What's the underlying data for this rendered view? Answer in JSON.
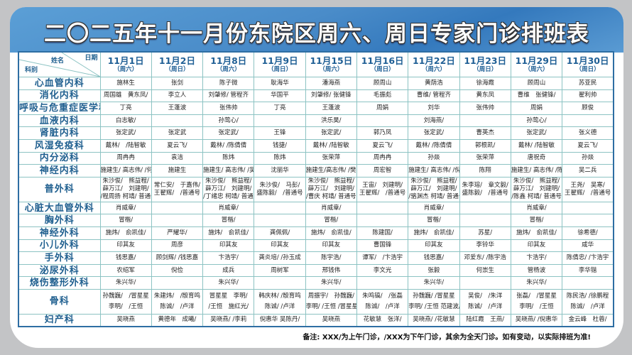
{
  "title": "二〇二五年十一月份东院区周六、周日专家门诊排班表",
  "corner": {
    "date": "日期",
    "name": "姓名",
    "dept": "科别"
  },
  "dates": [
    {
      "date": "11月1日",
      "weekday": "（周六）"
    },
    {
      "date": "11月2日",
      "weekday": "（周日）"
    },
    {
      "date": "11月8日",
      "weekday": "（周六）"
    },
    {
      "date": "11月9日",
      "weekday": "（周日）"
    },
    {
      "date": "11月15日",
      "weekday": "（周六）"
    },
    {
      "date": "11月16日",
      "weekday": "（周日）"
    },
    {
      "date": "11月22日",
      "weekday": "（周六）"
    },
    {
      "date": "11月23日",
      "weekday": "（周日）"
    },
    {
      "date": "11月29日",
      "weekday": "（周六）"
    },
    {
      "date": "11月30日",
      "weekday": "（周日）"
    }
  ],
  "rows": [
    {
      "dept": "心血管内科",
      "cells": [
        [
          "施林生"
        ],
        [
          "张剑"
        ],
        [
          "陈子微"
        ],
        [
          "耿海华"
        ],
        [
          "潘海燕"
        ],
        [
          "顾周山"
        ],
        [
          "黄荫浩"
        ],
        [
          "徐海霞"
        ],
        [
          "顾周山"
        ],
        [
          "苏亚民"
        ]
      ]
    },
    {
      "dept": "消化内科",
      "cells": [
        [
          "周国雄　黄东凤/"
        ],
        [
          "李立人"
        ],
        [
          "刘肇修/ 管程齐"
        ],
        [
          "华国平"
        ],
        [
          "刘肇修/ 张健锋"
        ],
        [
          "毛振彪"
        ],
        [
          "曹维/ 管程齐"
        ],
        [
          "黄东凤"
        ],
        [
          "曹维　张健锋/"
        ],
        [
          "翟利帅"
        ]
      ]
    },
    {
      "dept": "呼吸与危重症医学科",
      "cells": [
        [
          "丁亮"
        ],
        [
          "王蓬波"
        ],
        [
          "张伟帅"
        ],
        [
          "丁亮"
        ],
        [
          "王蓬波"
        ],
        [
          "周娟"
        ],
        [
          "刘华"
        ],
        [
          "张伟帅"
        ],
        [
          "周娟"
        ],
        [
          "顾俊"
        ]
      ]
    },
    {
      "dept": "血液内科",
      "cells": [
        [
          "白志敏/"
        ],
        [],
        [
          "孙莺心/"
        ],
        [],
        [
          "洪乐昊/"
        ],
        [],
        [
          "刘海燕/"
        ],
        [],
        [
          "孙莺心/"
        ],
        []
      ]
    },
    {
      "dept": "肾脏内科",
      "cells": [
        [
          "张定武/"
        ],
        [
          "张定武"
        ],
        [
          "张定武/"
        ],
        [
          "王锋"
        ],
        [
          "张定武/"
        ],
        [
          "郭乃凤"
        ],
        [
          "张定武/"
        ],
        [
          "曹英杰"
        ],
        [
          "张定武/"
        ],
        [
          "张义德"
        ]
      ]
    },
    {
      "dept": "风湿免疫科",
      "cells": [
        [
          "戴林/　/陆智敏"
        ],
        [
          "夏云飞/"
        ],
        [
          "戴林/ /陈倩倩"
        ],
        [
          "钱捷/"
        ],
        [
          "戴林/ /陆智敏"
        ],
        [
          "夏云飞/"
        ],
        [
          "戴林/ /陈倩倩"
        ],
        [
          "郭根凯/"
        ],
        [
          "戴林/ /陆智敏"
        ],
        [
          "夏云飞/"
        ]
      ]
    },
    {
      "dept": "内分泌科",
      "cells": [
        [
          "周冉冉"
        ],
        [
          "袁洁"
        ],
        [
          "陈炜"
        ],
        [
          "陈炜"
        ],
        [
          "张荣萍"
        ],
        [
          "周冉冉"
        ],
        [
          "孙燚"
        ],
        [
          "张荣萍"
        ],
        [
          "唐祝奇"
        ],
        [
          "孙燚"
        ]
      ]
    },
    {
      "dept": "神经内科",
      "cells": [
        [
          "施建生/ 高志伟/ /何亮"
        ],
        [
          "施建生"
        ],
        [
          "施建生/ 高志伟/ /吴二兵"
        ],
        [
          "沈丽华"
        ],
        [
          "施建生/高志伟/ /樊兴娟"
        ],
        [
          "周宏智"
        ],
        [
          "施建生/ 高志伟/ /倪耀辉"
        ],
        [
          "陈翔"
        ],
        [
          "施建生/ 高志伟/ /陈鑫"
        ],
        [
          "吴二兵"
        ]
      ]
    },
    {
      "dept": "普外科",
      "cells": [
        [
          "朱沙俊/　熊益程/",
          "薛万江/　刘建明/",
          "/程周扬 柯靖/ 普通号"
        ],
        [
          "常仁安/　于嘉伟/",
          "王翟辉/　/普通号"
        ],
        [
          "朱沙俊/　熊益程/",
          "薛万江/　刘建明/",
          "/丁绪忠 柯靖/ 普通号"
        ],
        [
          "朱沙俊/　马彭/",
          "盛陈毅/　/普通号"
        ],
        [
          "朱沙俊/　熊益程/",
          "薛万江/　刘建明/",
          "/曹庆 柯靖/ 普通号"
        ],
        [
          "王宙/　刘建明/",
          "王翟辉/　/普通号"
        ],
        [
          "朱沙俊/　熊益程/",
          "薛万江/　刘建明/",
          "/骆渊杰 柯靖/ 普通号"
        ],
        [
          "朱李瑢/　章文毅/",
          "盛陈毅/　/普通号"
        ],
        [
          "朱沙俊/　熊益程/",
          "薛万江/　刘建明/",
          "/陈鑫 柯靖/ 普通号"
        ],
        [
          "王尧/　吴寒/",
          "王翟辉/　/普通号"
        ]
      ]
    },
    {
      "dept": "心脏大血管外科",
      "cells": [
        [
          "肖威章/"
        ],
        [],
        [
          "肖威章/"
        ],
        [],
        [
          "肖威章/"
        ],
        [],
        [
          "肖威章/"
        ],
        [],
        [
          "肖威章/"
        ],
        []
      ]
    },
    {
      "dept": "胸外科",
      "cells": [
        [
          "冒楷/"
        ],
        [],
        [
          "冒楷/"
        ],
        [],
        [
          "冒楷/"
        ],
        [],
        [
          "冒楷/"
        ],
        [],
        [
          "冒楷/"
        ],
        []
      ]
    },
    {
      "dept": "神经外科",
      "cells": [
        [
          "施炜/　俞凯佳/"
        ],
        [
          "严耀华/"
        ],
        [
          "施炜/　俞凯佳/"
        ],
        [
          "龚佩佩/"
        ],
        [
          "施炜/　俞凯佳/"
        ],
        [
          "陈建国/"
        ],
        [
          "施炜/　俞凯佳/"
        ],
        [
          "苏星/"
        ],
        [
          "施炜/　俞凯佳/"
        ],
        [
          "徐希德/"
        ]
      ]
    },
    {
      "dept": "小儿外科",
      "cells": [
        [
          "印其友"
        ],
        [
          "周彦"
        ],
        [
          "印其友"
        ],
        [
          "印其友"
        ],
        [
          "印其友"
        ],
        [
          "曹国锋"
        ],
        [
          "印其友"
        ],
        [
          "李铃华"
        ],
        [
          "印其友"
        ],
        [
          "咸华"
        ]
      ]
    },
    {
      "dept": "手外科",
      "cells": [
        [
          "钱思嘉/"
        ],
        [
          "顾剑辉/ /钱思嘉"
        ],
        [
          "卞浩宇/"
        ],
        [
          "龚炎培/ /孙玉成"
        ],
        [
          "陈宇浩/"
        ],
        [
          "谭军/　/卞浩宇"
        ],
        [
          "钱思嘉/"
        ],
        [
          "邓爱东/ /陈宇浩"
        ],
        [
          "卞浩宇/"
        ],
        [
          "陈倩忠/ /卞浩宇"
        ]
      ]
    },
    {
      "dept": "泌尿外科",
      "cells": [
        [
          "农绍军"
        ],
        [
          "倪俭"
        ],
        [
          "成兵"
        ],
        [
          "周树军"
        ],
        [
          "邢钱伟"
        ],
        [
          "李文光"
        ],
        [
          "张毅"
        ],
        [
          "何崇生"
        ],
        [
          "管杨波"
        ],
        [
          "李华锴"
        ]
      ]
    },
    {
      "dept": "烧伤整形外科",
      "cells": [
        [
          "朱兴华/"
        ],
        [],
        [
          "朱兴华/"
        ],
        [],
        [
          "朱兴华/"
        ],
        [],
        [
          "朱兴华/"
        ],
        [],
        [
          "朱兴华/"
        ],
        []
      ]
    },
    {
      "dept": "骨科",
      "cells": [
        [
          "孙魏巍/　/冒星星",
          "李明/　/王恒"
        ],
        [
          "朱建炜/　/殷育鸣",
          "陈诚/　/卢洋"
        ],
        [
          "冒星星　李明/",
          "/王恒　施红光/"
        ],
        [
          "韩庆林/ /殷育鸣",
          "陈诚/ /卢洋"
        ],
        [
          "周振宇/　孙魏巍/",
          "李明/ /王恒 /冒星星"
        ],
        [
          "朱鸣镐/　/张磊",
          "陈诚/　/卢洋"
        ],
        [
          "孙魏巍/ /冒星星",
          "李明/ /王恒 范建波/"
        ],
        [
          "吴俊/　/朱洋",
          "陈诚/　/卢洋"
        ],
        [
          "张磊/　/冒星星",
          "李明/　/王恒"
        ],
        [
          "陈民浩/ /徐鹏程",
          "陈诚/　/卢洋"
        ]
      ]
    },
    {
      "dept": "妇产科",
      "cells": [
        [
          "吴晓燕"
        ],
        [
          "黄德年　成曦/"
        ],
        [
          "吴晓燕/ /李莉"
        ],
        [
          "倪惠华 吴陈丹/"
        ],
        [
          "吴晓燕"
        ],
        [
          "花敏慧　张洋/"
        ],
        [
          "吴晓燕/ /花敏慧"
        ],
        [
          "陆红霞　王燕/"
        ],
        [
          "吴晓燕/ /倪惠华"
        ],
        [
          "金云峰　杜蓉/"
        ]
      ]
    }
  ],
  "note": "备注: XXX/为上午门诊，/XXX为下午门诊，其余为全天门诊。如有变动，以实际排班为准!",
  "colors": {
    "accent": "#1f5f8f",
    "banner": "#4a8cc9",
    "grid": "#8cc3c3",
    "border": "#2e6ea3"
  }
}
